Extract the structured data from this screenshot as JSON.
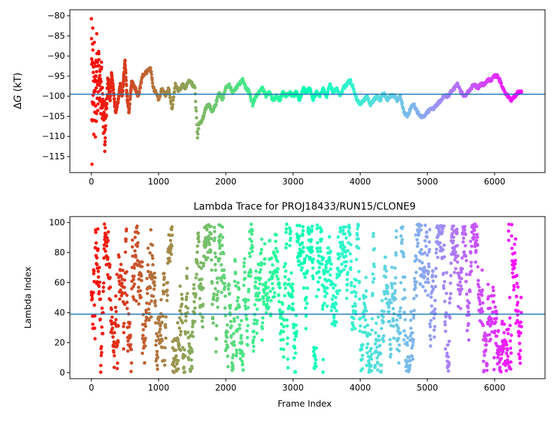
{
  "colors": {
    "hline": "#1f77b4",
    "background": "#ffffff",
    "axis": "#000000",
    "colormap": "rainbow"
  },
  "chart_data": [
    {
      "type": "scatter",
      "title": "",
      "xlabel": "",
      "ylabel": "ΔG (kT)",
      "ylabel_parts": {
        "prefix": "Δ",
        "italic": "G",
        "suffix": " (kT)"
      },
      "xlim": [
        -320,
        6750
      ],
      "ylim": [
        -119,
        -78.5
      ],
      "xticks": [
        0,
        1000,
        2000,
        3000,
        4000,
        5000,
        6000
      ],
      "yticks": [
        -115,
        -110,
        -105,
        -100,
        -95,
        -90,
        -85,
        -80
      ],
      "xtick_labels": [
        "0",
        "1000",
        "2000",
        "3000",
        "4000",
        "5000",
        "6000"
      ],
      "ytick_labels": [
        "−115",
        "−110",
        "−105",
        "−100",
        "−95",
        "−90",
        "−85",
        "−80"
      ],
      "hline": -99.5,
      "color_by": "frame index (rainbow colormap, red at frame 0 to violet at end)",
      "n_frames": 6400,
      "trace_keypoints": [
        [
          0,
          -80
        ],
        [
          5,
          -90
        ],
        [
          10,
          -115
        ],
        [
          15,
          -95
        ],
        [
          20,
          -82
        ],
        [
          25,
          -104
        ],
        [
          30,
          -90
        ],
        [
          35,
          -110
        ],
        [
          40,
          -98
        ],
        [
          45,
          -86
        ],
        [
          50,
          -102
        ],
        [
          55,
          -92
        ],
        [
          60,
          -111
        ],
        [
          65,
          -88
        ],
        [
          70,
          -96
        ],
        [
          75,
          -106
        ],
        [
          80,
          -84
        ],
        [
          85,
          -99
        ],
        [
          90,
          -93
        ],
        [
          95,
          -108
        ],
        [
          100,
          -97
        ],
        [
          110,
          -88
        ],
        [
          120,
          -100
        ],
        [
          130,
          -95
        ],
        [
          140,
          -103
        ],
        [
          150,
          -92
        ],
        [
          160,
          -105
        ],
        [
          170,
          -98
        ],
        [
          180,
          -108
        ],
        [
          190,
          -100
        ],
        [
          200,
          -112
        ],
        [
          220,
          -103
        ],
        [
          250,
          -96
        ],
        [
          280,
          -101
        ],
        [
          300,
          -94
        ],
        [
          330,
          -99
        ],
        [
          360,
          -104
        ],
        [
          400,
          -101
        ],
        [
          430,
          -97
        ],
        [
          460,
          -100
        ],
        [
          500,
          -91
        ],
        [
          530,
          -100
        ],
        [
          560,
          -104
        ],
        [
          600,
          -96
        ],
        [
          650,
          -98
        ],
        [
          700,
          -100
        ],
        [
          760,
          -95
        ],
        [
          820,
          -94
        ],
        [
          880,
          -93
        ],
        [
          920,
          -98
        ],
        [
          960,
          -99
        ],
        [
          1000,
          -101
        ],
        [
          1050,
          -98
        ],
        [
          1100,
          -100
        ],
        [
          1150,
          -98
        ],
        [
          1200,
          -103
        ],
        [
          1250,
          -97
        ],
        [
          1300,
          -99
        ],
        [
          1350,
          -97
        ],
        [
          1400,
          -98
        ],
        [
          1450,
          -96
        ],
        [
          1500,
          -97
        ],
        [
          1540,
          -98
        ],
        [
          1560,
          -104
        ],
        [
          1580,
          -110
        ],
        [
          1600,
          -107
        ],
        [
          1650,
          -106
        ],
        [
          1700,
          -103
        ],
        [
          1750,
          -102
        ],
        [
          1800,
          -104
        ],
        [
          1850,
          -102
        ],
        [
          1900,
          -99
        ],
        [
          1950,
          -101
        ],
        [
          2000,
          -98
        ],
        [
          2050,
          -97
        ],
        [
          2100,
          -99
        ],
        [
          2150,
          -98
        ],
        [
          2200,
          -97
        ],
        [
          2250,
          -96
        ],
        [
          2300,
          -98
        ],
        [
          2350,
          -99
        ],
        [
          2400,
          -102
        ],
        [
          2450,
          -100
        ],
        [
          2500,
          -99
        ],
        [
          2550,
          -98
        ],
        [
          2600,
          -100
        ],
        [
          2650,
          -99
        ],
        [
          2700,
          -101
        ],
        [
          2750,
          -100
        ],
        [
          2800,
          -101
        ],
        [
          2850,
          -99
        ],
        [
          2900,
          -100
        ],
        [
          2950,
          -99
        ],
        [
          3000,
          -100
        ],
        [
          3050,
          -99
        ],
        [
          3100,
          -101
        ],
        [
          3150,
          -98
        ],
        [
          3200,
          -99
        ],
        [
          3250,
          -98
        ],
        [
          3300,
          -101
        ],
        [
          3350,
          -99
        ],
        [
          3400,
          -100
        ],
        [
          3450,
          -98
        ],
        [
          3500,
          -100
        ],
        [
          3550,
          -97
        ],
        [
          3600,
          -99
        ],
        [
          3650,
          -98
        ],
        [
          3700,
          -100
        ],
        [
          3750,
          -98
        ],
        [
          3800,
          -97
        ],
        [
          3850,
          -96
        ],
        [
          3900,
          -98
        ],
        [
          3950,
          -101
        ],
        [
          4000,
          -102
        ],
        [
          4050,
          -101
        ],
        [
          4100,
          -100
        ],
        [
          4150,
          -102
        ],
        [
          4200,
          -101
        ],
        [
          4250,
          -100
        ],
        [
          4300,
          -101
        ],
        [
          4350,
          -99
        ],
        [
          4400,
          -101
        ],
        [
          4450,
          -100
        ],
        [
          4500,
          -100
        ],
        [
          4550,
          -101
        ],
        [
          4600,
          -100
        ],
        [
          4650,
          -104
        ],
        [
          4700,
          -105
        ],
        [
          4750,
          -103
        ],
        [
          4800,
          -102
        ],
        [
          4850,
          -104
        ],
        [
          4900,
          -105
        ],
        [
          4950,
          -105
        ],
        [
          5000,
          -104
        ],
        [
          5050,
          -103
        ],
        [
          5100,
          -103
        ],
        [
          5150,
          -102
        ],
        [
          5200,
          -101
        ],
        [
          5250,
          -100
        ],
        [
          5300,
          -100
        ],
        [
          5350,
          -99
        ],
        [
          5400,
          -98
        ],
        [
          5450,
          -97
        ],
        [
          5500,
          -99
        ],
        [
          5550,
          -100
        ],
        [
          5600,
          -99
        ],
        [
          5650,
          -98
        ],
        [
          5700,
          -97
        ],
        [
          5750,
          -98
        ],
        [
          5800,
          -97
        ],
        [
          5850,
          -97
        ],
        [
          5900,
          -96
        ],
        [
          5950,
          -96
        ],
        [
          6000,
          -95
        ],
        [
          6050,
          -95
        ],
        [
          6100,
          -97
        ],
        [
          6150,
          -99
        ],
        [
          6200,
          -100
        ],
        [
          6250,
          -101
        ],
        [
          6300,
          -100
        ],
        [
          6350,
          -99
        ],
        [
          6400,
          -99
        ]
      ]
    },
    {
      "type": "scatter",
      "title": "Lambda Trace for PROJ18433/RUN15/CLONE9",
      "xlabel": "Frame Index",
      "ylabel": "Lambda Index",
      "xlim": [
        -320,
        6750
      ],
      "ylim": [
        -4,
        104
      ],
      "xticks": [
        0,
        1000,
        2000,
        3000,
        4000,
        5000,
        6000
      ],
      "yticks": [
        0,
        20,
        40,
        60,
        80,
        100
      ],
      "xtick_labels": [
        "0",
        "1000",
        "2000",
        "3000",
        "4000",
        "5000",
        "6000"
      ],
      "ytick_labels": [
        "0",
        "20",
        "40",
        "60",
        "80",
        "100"
      ],
      "hline": 39,
      "color_by": "frame index (rainbow colormap, red at frame 0 to violet at end)",
      "n_frames": 6400,
      "value_range": [
        0,
        99
      ]
    }
  ]
}
